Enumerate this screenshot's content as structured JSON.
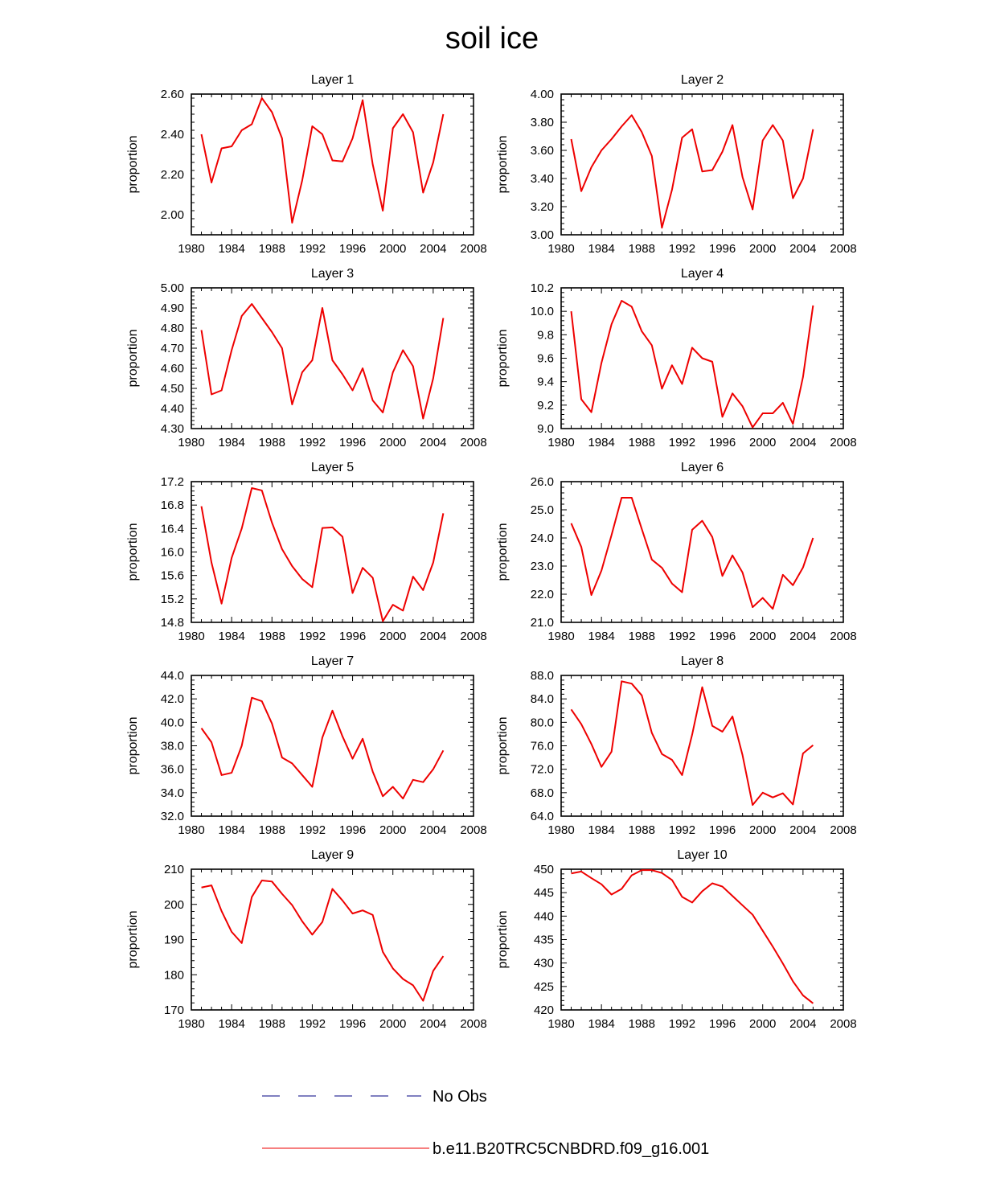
{
  "page": {
    "title": "soil ice"
  },
  "colors": {
    "model": "#ee0000",
    "obs": "#000080",
    "axis": "#000000"
  },
  "legend": [
    {
      "label": "No Obs",
      "style": "dashed",
      "color": "#000080"
    },
    {
      "label": "b.e11.B20TRC5CNBDRD.f09_g16.001",
      "style": "solid",
      "color": "#ee0000"
    }
  ],
  "chart_data": [
    {
      "type": "line",
      "title": "Layer 1",
      "ylabel": "proportion",
      "xlim": [
        1980,
        2008
      ],
      "xticks": [
        1980,
        1984,
        1988,
        1992,
        1996,
        2000,
        2004,
        2008
      ],
      "ylim": [
        1.9,
        2.6
      ],
      "yticks": [
        2.0,
        2.2,
        2.4,
        2.6
      ],
      "ytick_labels": [
        "2.00",
        "2.20",
        "2.40",
        "2.60"
      ],
      "x": [
        1981,
        1982,
        1983,
        1984,
        1985,
        1986,
        1987,
        1988,
        1989,
        1990,
        1991,
        1992,
        1993,
        1994,
        1995,
        1996,
        1997,
        1998,
        1999,
        2000,
        2001,
        2002,
        2003,
        2004,
        2005
      ],
      "series": [
        {
          "name": "b.e11.B20TRC5CNBDRD.f09_g16.001",
          "values": [
            2.4,
            2.16,
            2.33,
            2.34,
            2.42,
            2.45,
            2.58,
            2.51,
            2.38,
            1.96,
            2.17,
            2.44,
            2.4,
            2.27,
            2.265,
            2.38,
            2.57,
            2.25,
            2.02,
            2.43,
            2.5,
            2.41,
            2.11,
            2.26,
            2.5
          ]
        }
      ]
    },
    {
      "type": "line",
      "title": "Layer 2",
      "ylabel": "proportion",
      "xlim": [
        1980,
        2008
      ],
      "xticks": [
        1980,
        1984,
        1988,
        1992,
        1996,
        2000,
        2004,
        2008
      ],
      "ylim": [
        3.0,
        4.0
      ],
      "yticks": [
        3.0,
        3.2,
        3.4,
        3.6,
        3.8,
        4.0
      ],
      "ytick_labels": [
        "3.00",
        "3.20",
        "3.40",
        "3.60",
        "3.80",
        "4.00"
      ],
      "x": [
        1981,
        1982,
        1983,
        1984,
        1985,
        1986,
        1987,
        1988,
        1989,
        1990,
        1991,
        1992,
        1993,
        1994,
        1995,
        1996,
        1997,
        1998,
        1999,
        2000,
        2001,
        2002,
        2003,
        2004,
        2005
      ],
      "series": [
        {
          "name": "b.e11.B20TRC5CNBDRD.f09_g16.001",
          "values": [
            3.68,
            3.31,
            3.48,
            3.6,
            3.68,
            3.77,
            3.85,
            3.73,
            3.56,
            3.05,
            3.32,
            3.69,
            3.75,
            3.45,
            3.46,
            3.59,
            3.78,
            3.41,
            3.18,
            3.67,
            3.78,
            3.67,
            3.26,
            3.4,
            3.75
          ]
        }
      ]
    },
    {
      "type": "line",
      "title": "Layer 3",
      "ylabel": "proportion",
      "xlim": [
        1980,
        2008
      ],
      "xticks": [
        1980,
        1984,
        1988,
        1992,
        1996,
        2000,
        2004,
        2008
      ],
      "ylim": [
        4.3,
        5.0
      ],
      "yticks": [
        4.3,
        4.4,
        4.5,
        4.6,
        4.7,
        4.8,
        4.9,
        5.0
      ],
      "ytick_labels": [
        "4.30",
        "4.40",
        "4.50",
        "4.60",
        "4.70",
        "4.80",
        "4.90",
        "5.00"
      ],
      "x": [
        1981,
        1982,
        1983,
        1984,
        1985,
        1986,
        1987,
        1988,
        1989,
        1990,
        1991,
        1992,
        1993,
        1994,
        1995,
        1996,
        1997,
        1998,
        1999,
        2000,
        2001,
        2002,
        2003,
        2004,
        2005
      ],
      "series": [
        {
          "name": "b.e11.B20TRC5CNBDRD.f09_g16.001",
          "values": [
            4.79,
            4.47,
            4.49,
            4.69,
            4.86,
            4.92,
            4.85,
            4.78,
            4.7,
            4.42,
            4.58,
            4.64,
            4.9,
            4.64,
            4.57,
            4.49,
            4.6,
            4.44,
            4.38,
            4.58,
            4.69,
            4.61,
            4.35,
            4.55,
            4.85
          ]
        }
      ]
    },
    {
      "type": "line",
      "title": "Layer 4",
      "ylabel": "proportion",
      "xlim": [
        1980,
        2008
      ],
      "xticks": [
        1980,
        1984,
        1988,
        1992,
        1996,
        2000,
        2004,
        2008
      ],
      "ylim": [
        9.0,
        10.2
      ],
      "yticks": [
        9.0,
        9.2,
        9.4,
        9.6,
        9.8,
        10.0,
        10.2
      ],
      "ytick_labels": [
        "9.0",
        "9.2",
        "9.4",
        "9.6",
        "9.8",
        "10.0",
        "10.2"
      ],
      "x": [
        1981,
        1982,
        1983,
        1984,
        1985,
        1986,
        1987,
        1988,
        1989,
        1990,
        1991,
        1992,
        1993,
        1994,
        1995,
        1996,
        1997,
        1998,
        1999,
        2000,
        2001,
        2002,
        2003,
        2004,
        2005
      ],
      "series": [
        {
          "name": "b.e11.B20TRC5CNBDRD.f09_g16.001",
          "values": [
            10.0,
            9.25,
            9.14,
            9.56,
            9.89,
            10.09,
            10.04,
            9.83,
            9.71,
            9.34,
            9.54,
            9.38,
            9.69,
            9.6,
            9.57,
            9.1,
            9.3,
            9.19,
            9.01,
            9.13,
            9.13,
            9.22,
            9.04,
            9.44,
            10.05
          ]
        }
      ]
    },
    {
      "type": "line",
      "title": "Layer 5",
      "ylabel": "proportion",
      "xlim": [
        1980,
        2008
      ],
      "xticks": [
        1980,
        1984,
        1988,
        1992,
        1996,
        2000,
        2004,
        2008
      ],
      "ylim": [
        14.8,
        17.2
      ],
      "yticks": [
        14.8,
        15.2,
        15.6,
        16.0,
        16.4,
        16.8,
        17.2
      ],
      "ytick_labels": [
        "14.8",
        "15.2",
        "15.6",
        "16.0",
        "16.4",
        "16.8",
        "17.2"
      ],
      "x": [
        1981,
        1982,
        1983,
        1984,
        1985,
        1986,
        1987,
        1988,
        1989,
        1990,
        1991,
        1992,
        1993,
        1994,
        1995,
        1996,
        1997,
        1998,
        1999,
        2000,
        2001,
        2002,
        2003,
        2004,
        2005
      ],
      "series": [
        {
          "name": "b.e11.B20TRC5CNBDRD.f09_g16.001",
          "values": [
            16.78,
            15.82,
            15.12,
            15.9,
            16.4,
            17.09,
            17.05,
            16.5,
            16.05,
            15.76,
            15.54,
            15.4,
            16.41,
            16.42,
            16.26,
            15.3,
            15.73,
            15.56,
            14.82,
            15.1,
            15.0,
            15.58,
            15.35,
            15.82,
            16.66
          ]
        }
      ]
    },
    {
      "type": "line",
      "title": "Layer 6",
      "ylabel": "proportion",
      "xlim": [
        1980,
        2008
      ],
      "xticks": [
        1980,
        1984,
        1988,
        1992,
        1996,
        2000,
        2004,
        2008
      ],
      "ylim": [
        21.0,
        26.0
      ],
      "yticks": [
        21,
        22,
        23,
        24,
        25,
        26
      ],
      "ytick_labels": [
        "21.0",
        "22.0",
        "23.0",
        "24.0",
        "25.0",
        "26.0"
      ],
      "x": [
        1981,
        1982,
        1983,
        1984,
        1985,
        1986,
        1987,
        1988,
        1989,
        1990,
        1991,
        1992,
        1993,
        1994,
        1995,
        1996,
        1997,
        1998,
        1999,
        2000,
        2001,
        2002,
        2003,
        2004,
        2005
      ],
      "series": [
        {
          "name": "b.e11.B20TRC5CNBDRD.f09_g16.001",
          "values": [
            24.52,
            23.68,
            21.97,
            22.84,
            24.1,
            25.43,
            25.43,
            24.32,
            23.23,
            22.94,
            22.38,
            22.07,
            24.29,
            24.61,
            24.03,
            22.65,
            23.38,
            22.77,
            21.54,
            21.87,
            21.48,
            22.69,
            22.32,
            22.95,
            24.0
          ]
        }
      ]
    },
    {
      "type": "line",
      "title": "Layer 7",
      "ylabel": "proportion",
      "xlim": [
        1980,
        2008
      ],
      "xticks": [
        1980,
        1984,
        1988,
        1992,
        1996,
        2000,
        2004,
        2008
      ],
      "ylim": [
        32.0,
        44.0
      ],
      "yticks": [
        32,
        34,
        36,
        38,
        40,
        42,
        44
      ],
      "ytick_labels": [
        "32.0",
        "34.0",
        "36.0",
        "38.0",
        "40.0",
        "42.0",
        "44.0"
      ],
      "x": [
        1981,
        1982,
        1983,
        1984,
        1985,
        1986,
        1987,
        1988,
        1989,
        1990,
        1991,
        1992,
        1993,
        1994,
        1995,
        1996,
        1997,
        1998,
        1999,
        2000,
        2001,
        2002,
        2003,
        2004,
        2005
      ],
      "series": [
        {
          "name": "b.e11.B20TRC5CNBDRD.f09_g16.001",
          "values": [
            39.5,
            38.3,
            35.5,
            35.7,
            38.0,
            42.1,
            41.8,
            39.9,
            37.0,
            36.5,
            35.5,
            34.5,
            38.7,
            41.0,
            38.8,
            36.9,
            38.6,
            35.8,
            33.7,
            34.5,
            33.5,
            35.1,
            34.9,
            36.0,
            37.6
          ]
        }
      ]
    },
    {
      "type": "line",
      "title": "Layer 8",
      "ylabel": "proportion",
      "xlim": [
        1980,
        2008
      ],
      "xticks": [
        1980,
        1984,
        1988,
        1992,
        1996,
        2000,
        2004,
        2008
      ],
      "ylim": [
        64.0,
        88.0
      ],
      "yticks": [
        64,
        68,
        72,
        76,
        80,
        84,
        88
      ],
      "ytick_labels": [
        "64.0",
        "68.0",
        "72.0",
        "76.0",
        "80.0",
        "84.0",
        "88.0"
      ],
      "x": [
        1981,
        1982,
        1983,
        1984,
        1985,
        1986,
        1987,
        1988,
        1989,
        1990,
        1991,
        1992,
        1993,
        1994,
        1995,
        1996,
        1997,
        1998,
        1999,
        2000,
        2001,
        2002,
        2003,
        2004,
        2005
      ],
      "series": [
        {
          "name": "b.e11.B20TRC5CNBDRD.f09_g16.001",
          "values": [
            82.2,
            79.7,
            76.3,
            72.4,
            75.0,
            87.0,
            86.6,
            84.6,
            78.2,
            74.6,
            73.6,
            71.0,
            77.9,
            86.0,
            79.4,
            78.4,
            81.0,
            74.4,
            65.9,
            68.0,
            67.2,
            67.9,
            66.0,
            74.7,
            76.1
          ]
        }
      ]
    },
    {
      "type": "line",
      "title": "Layer 9",
      "ylabel": "proportion",
      "xlim": [
        1980,
        2008
      ],
      "xticks": [
        1980,
        1984,
        1988,
        1992,
        1996,
        2000,
        2004,
        2008
      ],
      "ylim": [
        170,
        210
      ],
      "yticks": [
        170,
        180,
        190,
        200,
        210
      ],
      "ytick_labels": [
        "170",
        "180",
        "190",
        "200",
        "210"
      ],
      "x": [
        1981,
        1982,
        1983,
        1984,
        1985,
        1986,
        1987,
        1988,
        1989,
        1990,
        1991,
        1992,
        1993,
        1994,
        1995,
        1996,
        1997,
        1998,
        1999,
        2000,
        2001,
        2002,
        2003,
        2004,
        2005
      ],
      "series": [
        {
          "name": "b.e11.B20TRC5CNBDRD.f09_g16.001",
          "values": [
            204.8,
            205.4,
            198.1,
            192.2,
            189.0,
            202.1,
            206.8,
            206.5,
            203.0,
            199.8,
            195.2,
            191.4,
            195.0,
            204.4,
            201.1,
            197.4,
            198.3,
            197.0,
            186.5,
            181.8,
            178.8,
            177.0,
            172.6,
            181.1,
            185.3
          ]
        }
      ]
    },
    {
      "type": "line",
      "title": "Layer 10",
      "ylabel": "proportion",
      "xlim": [
        1980,
        2008
      ],
      "xticks": [
        1980,
        1984,
        1988,
        1992,
        1996,
        2000,
        2004,
        2008
      ],
      "ylim": [
        420,
        450
      ],
      "yticks": [
        420,
        425,
        430,
        435,
        440,
        445,
        450
      ],
      "ytick_labels": [
        "420",
        "425",
        "430",
        "435",
        "440",
        "445",
        "450"
      ],
      "x": [
        1981,
        1982,
        1983,
        1984,
        1985,
        1986,
        1987,
        1988,
        1989,
        1990,
        1991,
        1992,
        1993,
        1994,
        1995,
        1996,
        1997,
        1998,
        1999,
        2000,
        2001,
        2002,
        2003,
        2004,
        2005
      ],
      "series": [
        {
          "name": "b.e11.B20TRC5CNBDRD.f09_g16.001",
          "values": [
            449.1,
            449.5,
            448.1,
            446.8,
            444.6,
            445.8,
            448.7,
            449.8,
            449.8,
            449.2,
            447.7,
            444.1,
            442.9,
            445.3,
            447.0,
            446.3,
            444.3,
            442.3,
            440.3,
            436.9,
            433.5,
            429.9,
            426.1,
            423.1,
            421.4
          ]
        }
      ]
    }
  ]
}
